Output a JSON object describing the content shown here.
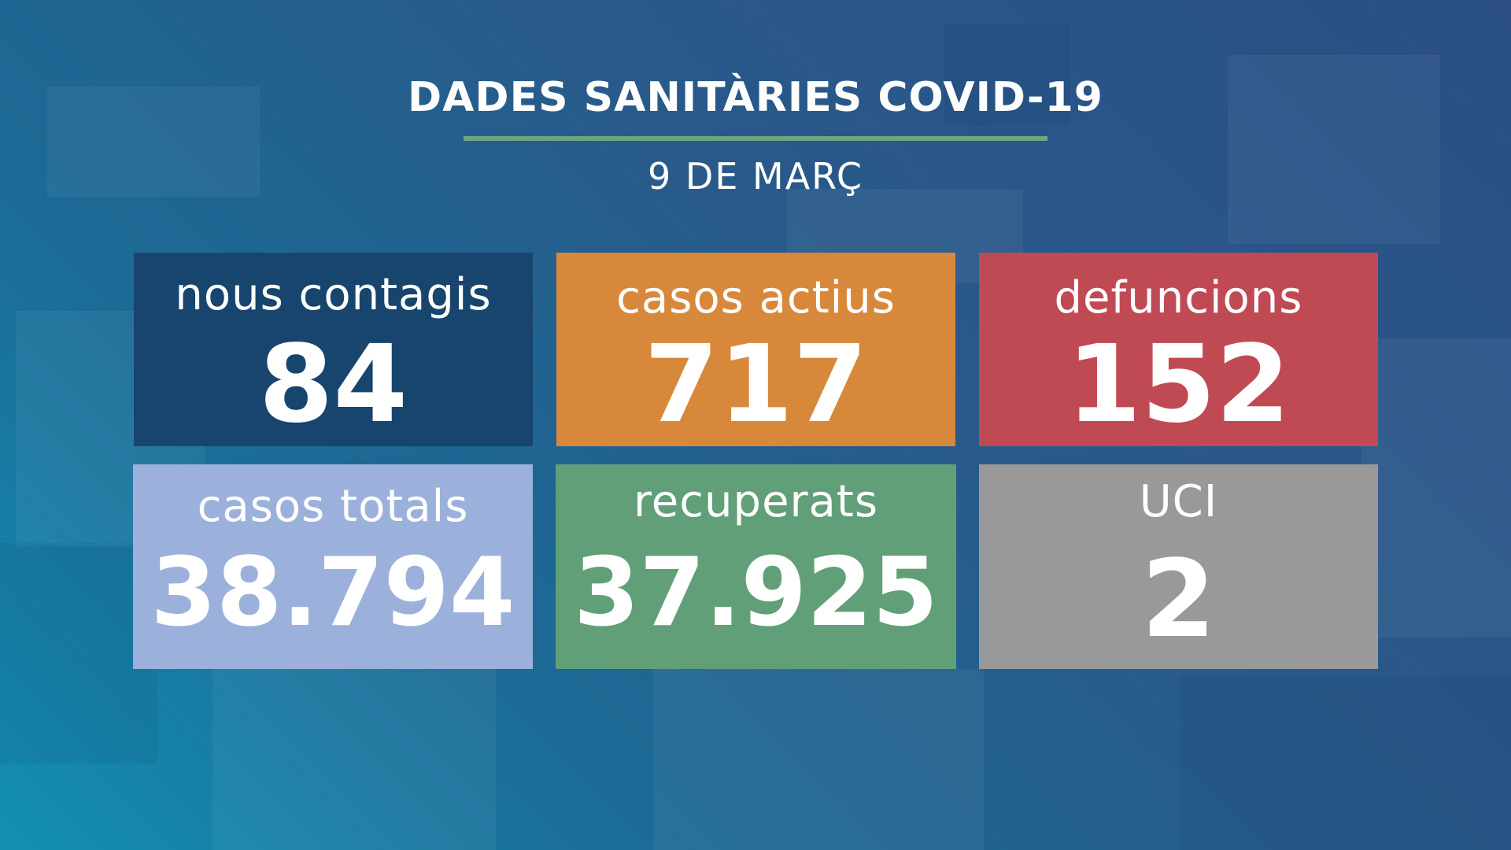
{
  "header": {
    "title": "DADES SANITÀRIES COVID-19",
    "date": "9 DE MARÇ"
  },
  "colors": {
    "rule": "#6da582",
    "nous_contagis": "#17456e",
    "casos_actius": "#d8883a",
    "defuncions": "#c04a53",
    "casos_totals": "#9bb1dc",
    "recuperats": "#619f78",
    "uci": "#999999"
  },
  "stats": {
    "nous_contagis": {
      "label": "nous contagis",
      "value": "84"
    },
    "casos_actius": {
      "label": "casos actius",
      "value": "717"
    },
    "defuncions": {
      "label": "defuncions",
      "value": "152"
    },
    "casos_totals": {
      "label": "casos totals",
      "value": "38.794"
    },
    "recuperats": {
      "label": "recuperats",
      "value": "37.925"
    },
    "uci": {
      "label": "UCI",
      "value": "2"
    }
  }
}
